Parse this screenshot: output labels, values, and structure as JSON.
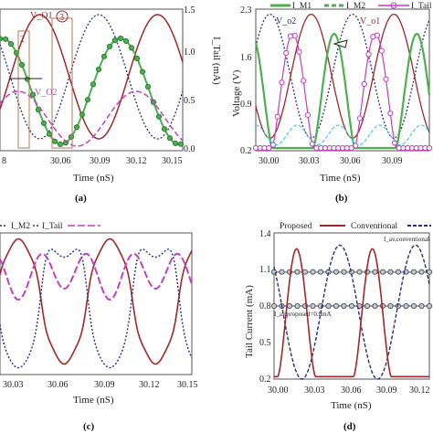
{
  "captions": [
    "(a)",
    "(b)",
    "(c)",
    "(d)"
  ],
  "colors": {
    "darkred": "#a0282a",
    "navy": "#2b2d7e",
    "green": "#4caf50",
    "magenta": "#c23fc2",
    "cyan": "#3fcfe0",
    "gray": "#9aa4a4"
  },
  "chart_data": [
    {
      "panel": "a",
      "type": "line",
      "xlabel": "Time (nS)",
      "ylabel_right": "I_Tail (mA)",
      "x_ticks": [
        "8",
        "30.06",
        "30.09",
        "30.12",
        "30.15"
      ],
      "y_right_ticks": [
        "0.0",
        "0.5",
        "1.0",
        "1.5"
      ],
      "ylim": [
        0,
        1.5
      ],
      "annotations": [
        "V_O1",
        "V_O2",
        "2",
        "3"
      ],
      "series": [
        {
          "style": "dark red solid",
          "amp": 0.65,
          "offset": 0.78,
          "phase": 0.0
        },
        {
          "style": "navy dotted",
          "amp": 0.65,
          "offset": 0.78,
          "phase": 3.14
        },
        {
          "style": "green with markers",
          "amp": 0.52,
          "offset": 0.65,
          "phase": 1.57
        },
        {
          "style": "magenta dashed",
          "amp": 0.32,
          "offset": 0.32,
          "phase": 1.0
        }
      ]
    },
    {
      "panel": "b",
      "type": "line",
      "xlabel": "Time (nS)",
      "ylabel": "Voltage (V)",
      "x_ticks": [
        "30.00",
        "30.03",
        "30.06",
        "30.09"
      ],
      "y_ticks": [
        "0.2",
        "0.9",
        "1.6",
        "2.3"
      ],
      "ylim": [
        0.2,
        2.3
      ],
      "legend": [
        "I_M1",
        "I_M2",
        "I_Tail"
      ],
      "annotations": [
        "V_o2",
        "V_o1"
      ]
    },
    {
      "panel": "c",
      "type": "line",
      "xlabel": "Time (nS)",
      "x_ticks": [
        "30.03",
        "30.06",
        "30.09",
        "30.12",
        "30.15"
      ],
      "legend": [
        "I_M2",
        "I_Tail"
      ]
    },
    {
      "panel": "d",
      "type": "line",
      "xlabel": "Time (nS)",
      "ylabel": "Tail Current (mA)",
      "x_ticks": [
        "30.00",
        "30.03",
        "30.06",
        "30.09",
        "30.12"
      ],
      "y_ticks": [
        "0.2",
        "0.5",
        "0.8",
        "1.1",
        "1.4"
      ],
      "ylim": [
        0.2,
        1.4
      ],
      "legend": [
        "Proposed",
        "Conventional"
      ],
      "annotations": [
        "I_av,conventional",
        "I_av,proposed=0.8mA"
      ],
      "levels": {
        "conventional_avg": 1.08,
        "proposed_avg": 0.8
      }
    }
  ]
}
